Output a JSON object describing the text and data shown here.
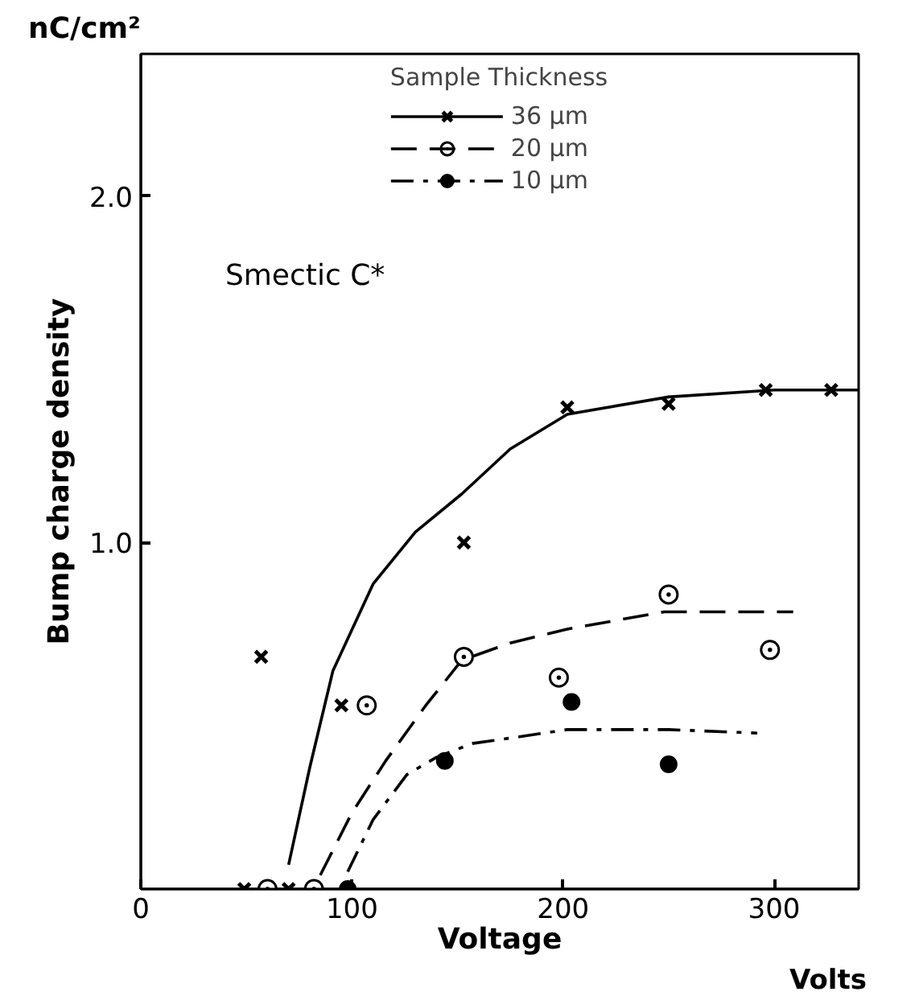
{
  "chart_data": {
    "type": "scatter",
    "xlabel": "Voltage",
    "ylabel": "Bump charge density",
    "legend_title": "Sample Thickness",
    "annotations": [
      "nC/cm²",
      "Volts",
      "Smectic C*"
    ],
    "xlim": [
      0,
      340
    ],
    "ylim": [
      0,
      2.41
    ],
    "xticks": [
      0,
      100,
      200,
      300
    ],
    "yticks": [
      {
        "value": 1,
        "label": "1.0"
      },
      {
        "value": 2,
        "label": "2.0"
      }
    ],
    "grid": false,
    "legend": "top",
    "series": [
      {
        "name": "36 µm",
        "color": "#000000",
        "marker": "cross",
        "x": [
          49,
          70,
          57,
          95,
          153,
          202,
          250,
          296,
          327
        ],
        "values": [
          0,
          0,
          0.67,
          0.53,
          1.0,
          1.39,
          1.4,
          1.44,
          1.44
        ]
      },
      {
        "type": "line",
        "color": "#000000",
        "line_style": "solid",
        "x": [
          70,
          80,
          91,
          110,
          130,
          152,
          175,
          202,
          250,
          300,
          340
        ],
        "values": [
          0.07,
          0.35,
          0.63,
          0.88,
          1.03,
          1.14,
          1.27,
          1.37,
          1.42,
          1.44,
          1.44
        ]
      },
      {
        "name": "20 µm",
        "color": "#000000",
        "marker": "circle_dot",
        "x": [
          60,
          82,
          107,
          153,
          198,
          250,
          298
        ],
        "values": [
          0,
          0,
          0.53,
          0.67,
          0.61,
          0.85,
          0.69
        ]
      },
      {
        "type": "line",
        "color": "#000000",
        "line_style": "dashed",
        "x": [
          85,
          100,
          116,
          135,
          152,
          175,
          202,
          248,
          309
        ],
        "values": [
          0.04,
          0.22,
          0.37,
          0.53,
          0.66,
          0.71,
          0.75,
          0.8,
          0.8
        ]
      },
      {
        "name": "10 µm",
        "color": "#000000",
        "marker": "circle",
        "x": [
          98,
          144,
          204,
          250
        ],
        "values": [
          0,
          0.37,
          0.54,
          0.36
        ]
      },
      {
        "type": "line",
        "color": "#000000",
        "line_style": "dashdot",
        "x": [
          98,
          110,
          126,
          140,
          157,
          180,
          202,
          250,
          292
        ],
        "values": [
          0.05,
          0.2,
          0.33,
          0.38,
          0.42,
          0.44,
          0.46,
          0.46,
          0.45
        ]
      }
    ]
  }
}
